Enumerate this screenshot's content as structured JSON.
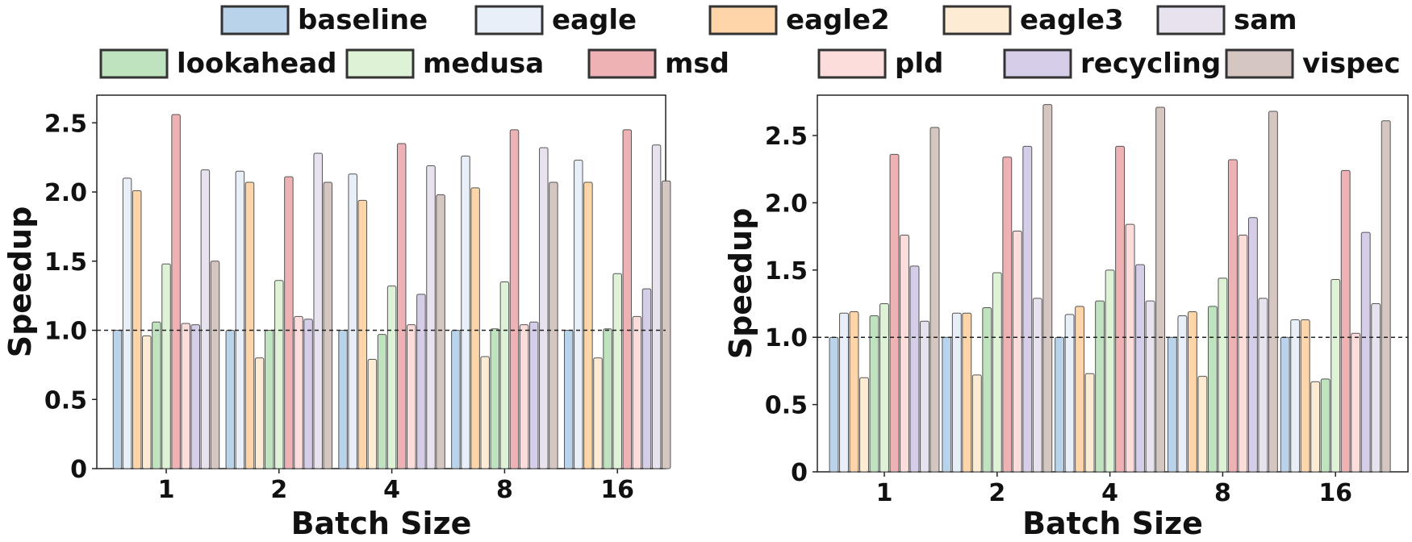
{
  "legend": [
    {
      "name": "baseline",
      "color": "#b9d3ea"
    },
    {
      "name": "eagle",
      "color": "#e9eff8"
    },
    {
      "name": "eagle2",
      "color": "#fdd5a8"
    },
    {
      "name": "eagle3",
      "color": "#fdebd3"
    },
    {
      "name": "sam",
      "color": "#e8e2ef"
    },
    {
      "name": "lookahead",
      "color": "#bfe3bf"
    },
    {
      "name": "medusa",
      "color": "#def2d6"
    },
    {
      "name": "msd",
      "color": "#eeb2b4"
    },
    {
      "name": "pld",
      "color": "#fddcdc"
    },
    {
      "name": "recycling",
      "color": "#d6cde8"
    },
    {
      "name": "vispec",
      "color": "#d6c6c1"
    }
  ],
  "chart_data": [
    {
      "type": "bar",
      "xlabel": "Batch Size",
      "ylabel": "Speedup",
      "categories": [
        "1",
        "2",
        "4",
        "8",
        "16"
      ],
      "ylim": [
        0,
        2.7
      ],
      "yticks": [
        "0",
        "0.5",
        "1.0",
        "1.5",
        "2.0",
        "2.5"
      ],
      "reference_line": 1.0,
      "series": [
        {
          "name": "baseline",
          "values": [
            1.0,
            1.0,
            1.0,
            1.0,
            1.0
          ]
        },
        {
          "name": "eagle",
          "values": [
            2.1,
            2.15,
            2.13,
            2.26,
            2.23
          ]
        },
        {
          "name": "eagle2",
          "values": [
            2.01,
            2.07,
            1.94,
            2.03,
            2.07
          ]
        },
        {
          "name": "eagle3",
          "values": [
            0.96,
            0.8,
            0.79,
            0.81,
            0.8
          ]
        },
        {
          "name": "lookahead",
          "values": [
            1.06,
            1.0,
            0.97,
            1.01,
            1.01
          ]
        },
        {
          "name": "medusa",
          "values": [
            1.48,
            1.36,
            1.32,
            1.35,
            1.41
          ]
        },
        {
          "name": "msd",
          "values": [
            2.56,
            2.11,
            2.35,
            2.45,
            2.45
          ]
        },
        {
          "name": "pld",
          "values": [
            1.05,
            1.1,
            1.04,
            1.04,
            1.1
          ]
        },
        {
          "name": "recycling",
          "values": [
            1.04,
            1.08,
            1.26,
            1.06,
            1.3
          ]
        },
        {
          "name": "sam",
          "values": [
            2.16,
            2.28,
            2.19,
            2.32,
            2.34
          ]
        },
        {
          "name": "vispec",
          "values": [
            1.5,
            2.07,
            1.98,
            2.07,
            2.08
          ]
        }
      ]
    },
    {
      "type": "bar",
      "xlabel": "Batch Size",
      "ylabel": "Speedup",
      "categories": [
        "1",
        "2",
        "4",
        "8",
        "16"
      ],
      "ylim": [
        0,
        2.8
      ],
      "yticks": [
        "0",
        "0.5",
        "1.0",
        "1.5",
        "2.0",
        "2.5"
      ],
      "reference_line": 1.0,
      "series": [
        {
          "name": "baseline",
          "values": [
            1.0,
            1.0,
            1.0,
            1.0,
            1.0
          ]
        },
        {
          "name": "eagle",
          "values": [
            1.18,
            1.18,
            1.17,
            1.16,
            1.13
          ]
        },
        {
          "name": "eagle2",
          "values": [
            1.19,
            1.18,
            1.23,
            1.19,
            1.13
          ]
        },
        {
          "name": "eagle3",
          "values": [
            0.7,
            0.72,
            0.73,
            0.71,
            0.67
          ]
        },
        {
          "name": "lookahead",
          "values": [
            1.16,
            1.22,
            1.27,
            1.23,
            0.69
          ]
        },
        {
          "name": "medusa",
          "values": [
            1.25,
            1.48,
            1.5,
            1.44,
            1.43
          ]
        },
        {
          "name": "msd",
          "values": [
            2.36,
            2.34,
            2.42,
            2.32,
            2.24
          ]
        },
        {
          "name": "pld",
          "values": [
            1.76,
            1.79,
            1.84,
            1.76,
            1.03
          ]
        },
        {
          "name": "recycling",
          "values": [
            1.53,
            2.42,
            1.54,
            1.89,
            1.78
          ]
        },
        {
          "name": "sam",
          "values": [
            1.12,
            1.29,
            1.27,
            1.29,
            1.25
          ]
        },
        {
          "name": "vispec",
          "values": [
            2.56,
            2.73,
            2.71,
            2.68,
            2.61
          ]
        }
      ]
    }
  ]
}
